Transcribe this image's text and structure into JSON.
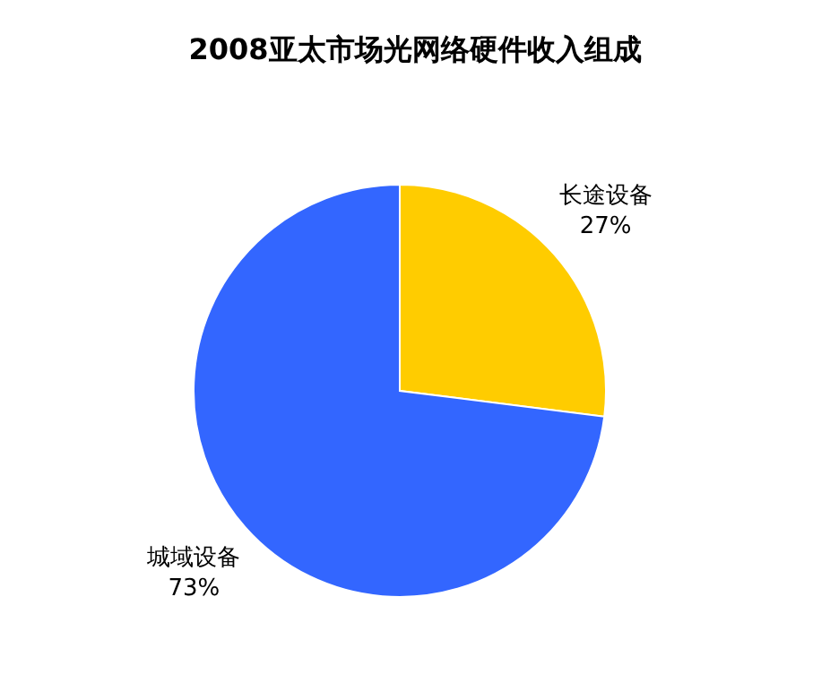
{
  "chart_data": {
    "type": "pie",
    "title": "2008亚太市场光网络硬件收入组成",
    "categories": [
      "长途设备",
      "城域设备"
    ],
    "values": [
      27,
      73
    ],
    "colors": [
      "#ffcc00",
      "#3366ff"
    ],
    "value_labels": [
      "27%",
      "73%"
    ]
  }
}
